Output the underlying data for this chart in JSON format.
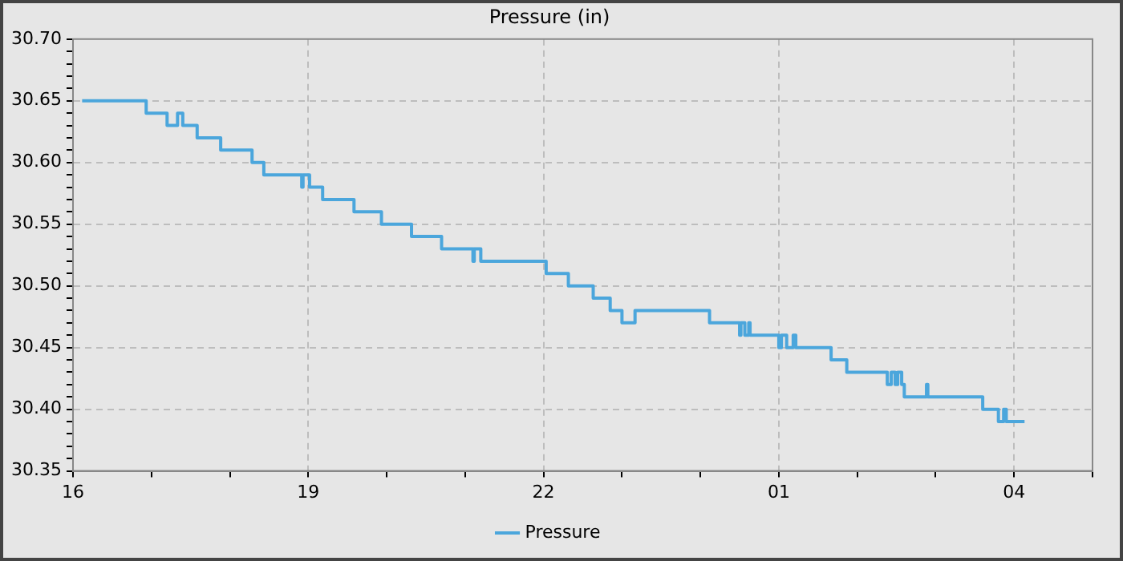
{
  "chart_data": {
    "type": "step",
    "title": "Pressure (in)",
    "legend": "bottom",
    "grid": true,
    "marker": "none",
    "line_style": "solid",
    "xlim": [
      "--01-01T16:00",
      "--01-02T05:00"
    ],
    "xticks": [
      {
        "value": "--01-01T16:00",
        "label": "16"
      },
      {
        "value": "--01-01T17:00",
        "label": null
      },
      {
        "value": "--01-01T18:00",
        "label": null
      },
      {
        "value": "--01-01T19:00",
        "label": "19"
      },
      {
        "value": "--01-01T20:00",
        "label": null
      },
      {
        "value": "--01-01T21:00",
        "label": null
      },
      {
        "value": "--01-01T22:00",
        "label": "22"
      },
      {
        "value": "--01-01T23:00",
        "label": null
      },
      {
        "value": "--01-02T00:00",
        "label": null
      },
      {
        "value": "--01-02T01:00",
        "label": "01"
      },
      {
        "value": "--01-02T02:00",
        "label": null
      },
      {
        "value": "--01-02T03:00",
        "label": null
      },
      {
        "value": "--01-02T04:00",
        "label": "04"
      },
      {
        "value": "--01-02T05:00",
        "label": null
      }
    ],
    "ylim": [
      30.35,
      30.7
    ],
    "yticks": [
      30.35,
      {
        "value": 30.36,
        "label": null
      },
      {
        "value": 30.37,
        "label": null
      },
      {
        "value": 30.38,
        "label": null
      },
      {
        "value": 30.39,
        "label": null
      },
      {
        "value": 30.4,
        "label": "30.40"
      },
      {
        "value": 30.41,
        "label": null
      },
      {
        "value": 30.42,
        "label": null
      },
      {
        "value": 30.43,
        "label": null
      },
      {
        "value": 30.44,
        "label": null
      },
      30.45,
      {
        "value": 30.46,
        "label": null
      },
      {
        "value": 30.47,
        "label": null
      },
      {
        "value": 30.48,
        "label": null
      },
      {
        "value": 30.49,
        "label": null
      },
      {
        "value": 30.5,
        "label": "30.50"
      },
      {
        "value": 30.51,
        "label": null
      },
      {
        "value": 30.52,
        "label": null
      },
      {
        "value": 30.53,
        "label": null
      },
      {
        "value": 30.54,
        "label": null
      },
      30.55,
      {
        "value": 30.56,
        "label": null
      },
      {
        "value": 30.57,
        "label": null
      },
      {
        "value": 30.58,
        "label": null
      },
      {
        "value": 30.59,
        "label": null
      },
      {
        "value": 30.6,
        "label": "30.60"
      },
      {
        "value": 30.61,
        "label": null
      },
      {
        "value": 30.62,
        "label": null
      },
      {
        "value": 30.63,
        "label": null
      },
      {
        "value": 30.64,
        "label": null
      },
      30.65,
      {
        "value": 30.66,
        "label": null
      },
      {
        "value": 30.67,
        "label": null
      },
      {
        "value": 30.68,
        "label": null
      },
      {
        "value": 30.69,
        "label": null
      },
      {
        "value": 30.7,
        "label": "30.70"
      }
    ],
    "series": [
      {
        "name": "Pressure",
        "color": "#4ba6dc",
        "x": [
          "--01-01T16:07",
          "--01-01T16:56",
          "--01-01T17:12",
          "--01-01T17:20",
          "--01-01T17:24",
          "--01-01T17:35",
          "--01-01T17:37",
          "--01-01T17:53",
          "--01-01T18:17",
          "--01-01T18:26",
          "--01-01T18:55",
          "--01-01T18:56",
          "--01-01T18:57",
          "--01-01T19:01",
          "--01-01T19:11",
          "--01-01T19:35",
          "--01-01T19:56",
          "--01-01T20:19",
          "--01-01T20:42",
          "--01-01T21:06",
          "--01-01T21:07",
          "--01-01T21:12",
          "--01-01T22:02",
          "--01-01T22:19",
          "--01-01T22:38",
          "--01-01T22:51",
          "--01-01T23:00",
          "--01-01T23:10",
          "--01-02T00:07",
          "--01-02T00:30",
          "--01-02T00:31",
          "--01-02T00:34",
          "--01-02T00:37",
          "--01-02T00:38",
          "--01-02T01:00",
          "--01-02T01:02",
          "--01-02T01:06",
          "--01-02T01:11",
          "--01-02T01:13",
          "--01-02T01:40",
          "--01-02T01:52",
          "--01-02T02:23",
          "--01-02T02:26",
          "--01-02T02:29",
          "--01-02T02:31",
          "--01-02T02:34",
          "--01-02T02:36",
          "--01-02T02:53",
          "--01-02T02:54",
          "--01-02T02:56",
          "--01-02T03:36",
          "--01-02T03:48",
          "--01-02T03:52",
          "--01-02T03:54",
          "--01-02T03:56",
          "--01-02T04:08"
        ],
        "values": [
          30.65,
          30.64,
          30.63,
          30.64,
          30.63,
          30.62,
          30.62,
          30.61,
          30.6,
          30.59,
          30.58,
          30.59,
          30.59,
          30.58,
          30.57,
          30.56,
          30.55,
          30.54,
          30.53,
          30.52,
          30.53,
          30.52,
          30.51,
          30.5,
          30.49,
          30.48,
          30.47,
          30.48,
          30.47,
          30.46,
          30.47,
          30.46,
          30.47,
          30.46,
          30.45,
          30.46,
          30.45,
          30.46,
          30.45,
          30.44,
          30.43,
          30.42,
          30.43,
          30.42,
          30.43,
          30.42,
          30.41,
          30.42,
          30.41,
          30.41,
          30.4,
          30.39,
          30.4,
          30.39,
          30.39,
          30.39
        ]
      }
    ]
  }
}
